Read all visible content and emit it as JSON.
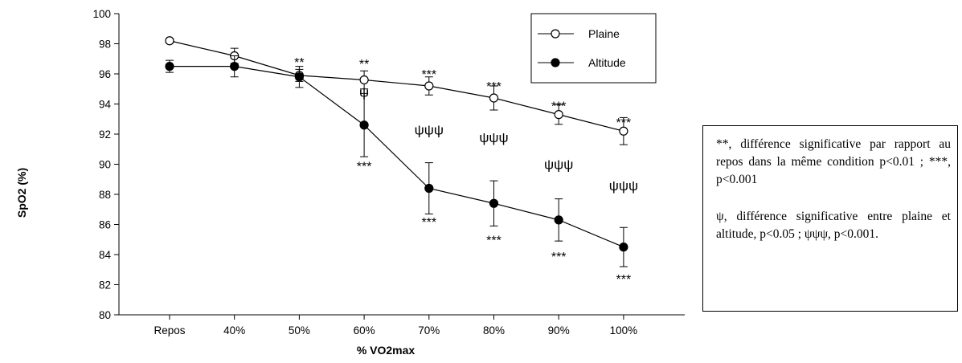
{
  "chart_data": {
    "type": "line",
    "xlabel": "% VO2max",
    "ylabel": "SpO2 (%)",
    "categories": [
      "Repos",
      "40%",
      "50%",
      "60%",
      "70%",
      "80%",
      "90%",
      "100%"
    ],
    "ylim": [
      80,
      100
    ],
    "yticks": [
      80,
      82,
      84,
      86,
      88,
      90,
      92,
      94,
      96,
      98,
      100
    ],
    "grid": false,
    "legend_position": "top-right",
    "series": [
      {
        "name": "Plaine",
        "marker": "open-circle",
        "x": [
          "Repos",
          "40%",
          "50%",
          "60%",
          "70%",
          "80%",
          "90%",
          "100%"
        ],
        "values": [
          98.2,
          97.2,
          95.9,
          95.6,
          95.2,
          94.4,
          93.3,
          92.2
        ],
        "error": [
          0.15,
          0.5,
          0.4,
          0.6,
          0.6,
          0.8,
          0.65,
          0.9
        ]
      },
      {
        "name": "Altitude",
        "marker": "filled-circle",
        "x": [
          "Repos",
          "40%",
          "50%",
          "60%",
          "70%",
          "80%",
          "90%",
          "100%"
        ],
        "values": [
          96.5,
          96.5,
          95.8,
          92.6,
          88.4,
          87.4,
          86.3,
          84.5
        ],
        "error": [
          0.4,
          0.7,
          0.7,
          2.1,
          1.7,
          1.5,
          1.4,
          1.3
        ]
      }
    ],
    "annotations": [
      {
        "category": "50%",
        "y": 96.8,
        "text": "**"
      },
      {
        "category": "60%",
        "y": 96.7,
        "text": "**"
      },
      {
        "category": "60%",
        "y": 94.8,
        "text": "ψ"
      },
      {
        "category": "60%",
        "y": 89.9,
        "text": "***"
      },
      {
        "category": "70%",
        "y": 96.0,
        "text": "***"
      },
      {
        "category": "70%",
        "y": 92.3,
        "text": "ψψψ"
      },
      {
        "category": "70%",
        "y": 86.2,
        "text": "***"
      },
      {
        "category": "80%",
        "y": 95.2,
        "text": "***"
      },
      {
        "category": "80%",
        "y": 91.8,
        "text": "ψψψ"
      },
      {
        "category": "80%",
        "y": 85.0,
        "text": "***"
      },
      {
        "category": "90%",
        "y": 93.9,
        "text": "***"
      },
      {
        "category": "90%",
        "y": 90.0,
        "text": "ψψψ"
      },
      {
        "category": "90%",
        "y": 83.9,
        "text": "***"
      },
      {
        "category": "100%",
        "y": 92.8,
        "text": "***"
      },
      {
        "category": "100%",
        "y": 88.6,
        "text": "ψψψ"
      },
      {
        "category": "100%",
        "y": 82.4,
        "text": "***"
      }
    ]
  },
  "note": {
    "line1": "**, différence significative par rapport au repos dans la même condition p<0.01 ; ***, p<0.001",
    "line2": "ψ, différence significative entre plaine et altitude, p<0.05 ; ψψψ, p<0.001."
  }
}
